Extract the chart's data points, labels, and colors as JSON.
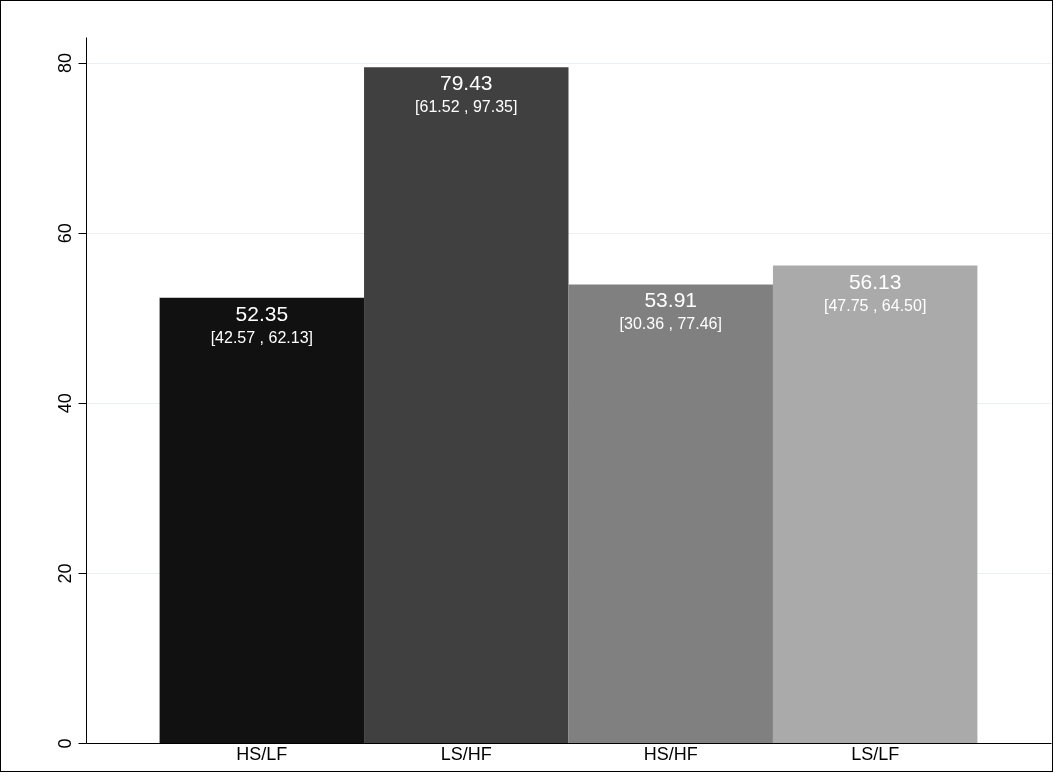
{
  "chart_data": {
    "type": "bar",
    "categories": [
      "HS/LF",
      "LS/HF",
      "HS/HF",
      "LS/LF"
    ],
    "values": [
      52.35,
      79.43,
      53.91,
      56.13
    ],
    "colors": [
      "#111111",
      "#404040",
      "#808080",
      "#aaaaaa"
    ],
    "data_labels": true,
    "annotations": [
      {
        "text": "[42.57 , 62.13]",
        "x": "HS/LF",
        "y": 52.35
      },
      {
        "text": "[61.52 , 97.35]",
        "x": "LS/HF",
        "y": 79.43
      },
      {
        "text": "[30.36 , 77.46]",
        "x": "HS/HF",
        "y": 53.91
      },
      {
        "text": "[47.75 , 64.50]",
        "x": "LS/LF",
        "y": 56.13
      }
    ],
    "ylim": [
      0,
      83
    ],
    "yticks": [
      0,
      20,
      40,
      60,
      80
    ],
    "grid": "y"
  }
}
